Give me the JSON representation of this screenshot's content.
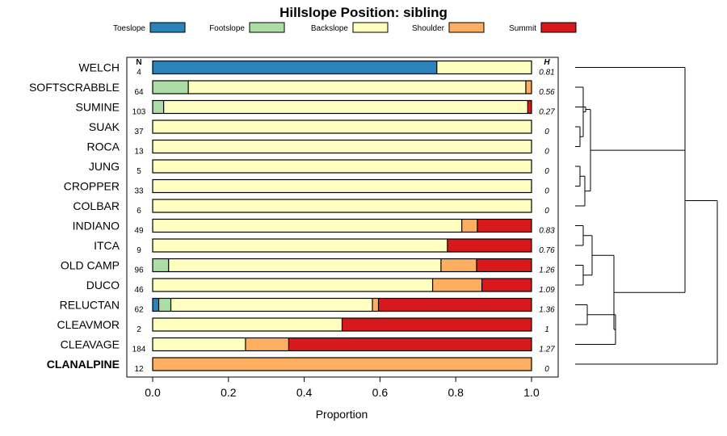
{
  "chart_data": {
    "type": "bar",
    "stacked": true,
    "orientation": "horizontal",
    "title": "Hillslope Position: sibling",
    "xlabel": "Proportion",
    "xlim": [
      0,
      1
    ],
    "x_ticks": [
      "0.0",
      "0.2",
      "0.4",
      "0.6",
      "0.8",
      "1.0"
    ],
    "n_header": "N",
    "h_header": "H",
    "legend_position": "top",
    "legend": [
      {
        "name": "Toeslope",
        "color": "#2b83ba"
      },
      {
        "name": "Footslope",
        "color": "#abdda4"
      },
      {
        "name": "Backslope",
        "color": "#ffffbf"
      },
      {
        "name": "Shoulder",
        "color": "#fdae61"
      },
      {
        "name": "Summit",
        "color": "#d7191c"
      }
    ],
    "categories": [
      {
        "name": "WELCH",
        "n": "4",
        "h": "0.81",
        "bold": false,
        "values": [
          0.75,
          0,
          0.25,
          0,
          0
        ]
      },
      {
        "name": "SOFTSCRABBLE",
        "n": "64",
        "h": "0.56",
        "bold": false,
        "values": [
          0,
          0.094,
          0.891,
          0.015,
          0
        ]
      },
      {
        "name": "SUMINE",
        "n": "103",
        "h": "0.27",
        "bold": false,
        "values": [
          0,
          0.029,
          0.961,
          0,
          0.01
        ]
      },
      {
        "name": "SUAK",
        "n": "37",
        "h": "0",
        "bold": false,
        "values": [
          0,
          0,
          1,
          0,
          0
        ]
      },
      {
        "name": "ROCA",
        "n": "13",
        "h": "0",
        "bold": false,
        "values": [
          0,
          0,
          1,
          0,
          0
        ]
      },
      {
        "name": "JUNG",
        "n": "5",
        "h": "0",
        "bold": false,
        "values": [
          0,
          0,
          1,
          0,
          0
        ]
      },
      {
        "name": "CROPPER",
        "n": "33",
        "h": "0",
        "bold": false,
        "values": [
          0,
          0,
          1,
          0,
          0
        ]
      },
      {
        "name": "COLBAR",
        "n": "6",
        "h": "0",
        "bold": false,
        "values": [
          0,
          0,
          1,
          0,
          0
        ]
      },
      {
        "name": "INDIANO",
        "n": "49",
        "h": "0.83",
        "bold": false,
        "values": [
          0,
          0,
          0.816,
          0.041,
          0.143
        ]
      },
      {
        "name": "ITCA",
        "n": "9",
        "h": "0.76",
        "bold": false,
        "values": [
          0,
          0,
          0.778,
          0,
          0.222
        ]
      },
      {
        "name": "OLD CAMP",
        "n": "96",
        "h": "1.26",
        "bold": false,
        "values": [
          0,
          0.042,
          0.719,
          0.094,
          0.146
        ]
      },
      {
        "name": "DUCO",
        "n": "46",
        "h": "1.09",
        "bold": false,
        "values": [
          0,
          0,
          0.739,
          0.13,
          0.131
        ]
      },
      {
        "name": "RELUCTAN",
        "n": "62",
        "h": "1.36",
        "bold": false,
        "values": [
          0.016,
          0.032,
          0.532,
          0.016,
          0.404
        ]
      },
      {
        "name": "CLEAVMOR",
        "n": "2",
        "h": "1",
        "bold": false,
        "values": [
          0,
          0,
          0.5,
          0,
          0.5
        ]
      },
      {
        "name": "CLEAVAGE",
        "n": "184",
        "h": "1.27",
        "bold": false,
        "values": [
          0,
          0,
          0.245,
          0.114,
          0.641
        ]
      },
      {
        "name": "CLANALPINE",
        "n": "12",
        "h": "0",
        "bold": true,
        "values": [
          0,
          0,
          0,
          1,
          0
        ]
      }
    ]
  }
}
